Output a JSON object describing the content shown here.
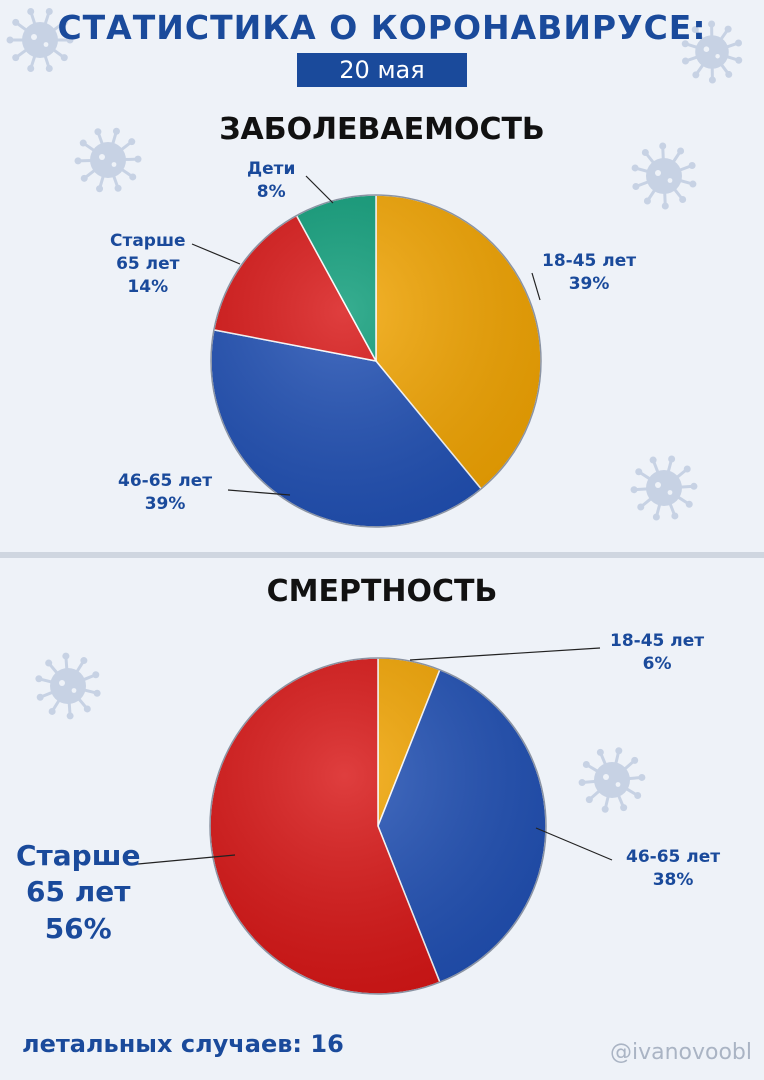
{
  "header": {
    "title": "СТАТИСТИКА О КОРОНАВИРУСЕ:",
    "date": "20 мая"
  },
  "colors": {
    "orange": "#f2a400",
    "blue": "#1f4fb4",
    "red": "#d81414",
    "green": "#0b9c78",
    "text_blue": "#1a4a9b",
    "virus": "#c7d2e4"
  },
  "decorations": [
    "virus-icon",
    "virus-icon",
    "virus-icon",
    "virus-icon",
    "virus-icon",
    "virus-icon",
    "virus-icon"
  ],
  "chart_data": [
    {
      "type": "pie",
      "title": "ЗАБОЛЕВАЕМОСТЬ",
      "slices": [
        {
          "label_lines": [
            "18-45 лет",
            "39%"
          ],
          "value": 39,
          "color": "#f2a400"
        },
        {
          "label_lines": [
            "46-65 лет",
            "39%"
          ],
          "value": 39,
          "color": "#1f4fb4"
        },
        {
          "label_lines": [
            "Старше",
            "65 лет",
            "14%"
          ],
          "value": 14,
          "color": "#d81414"
        },
        {
          "label_lines": [
            "Дети",
            "8%"
          ],
          "value": 8,
          "color": "#0b9c78"
        }
      ]
    },
    {
      "type": "pie",
      "title": "СМЕРТНОСТЬ",
      "slices": [
        {
          "label_lines": [
            "18-45 лет",
            "6%"
          ],
          "value": 6,
          "color": "#f2a400"
        },
        {
          "label_lines": [
            "46-65 лет",
            "38%"
          ],
          "value": 38,
          "color": "#1f4fb4"
        },
        {
          "label_lines": [
            "Старше",
            "65 лет",
            "56%"
          ],
          "value": 56,
          "color": "#d81414"
        }
      ]
    }
  ],
  "footer": {
    "label": "летальных случаев:",
    "value": "16",
    "handle": "@ivanovoobl"
  }
}
